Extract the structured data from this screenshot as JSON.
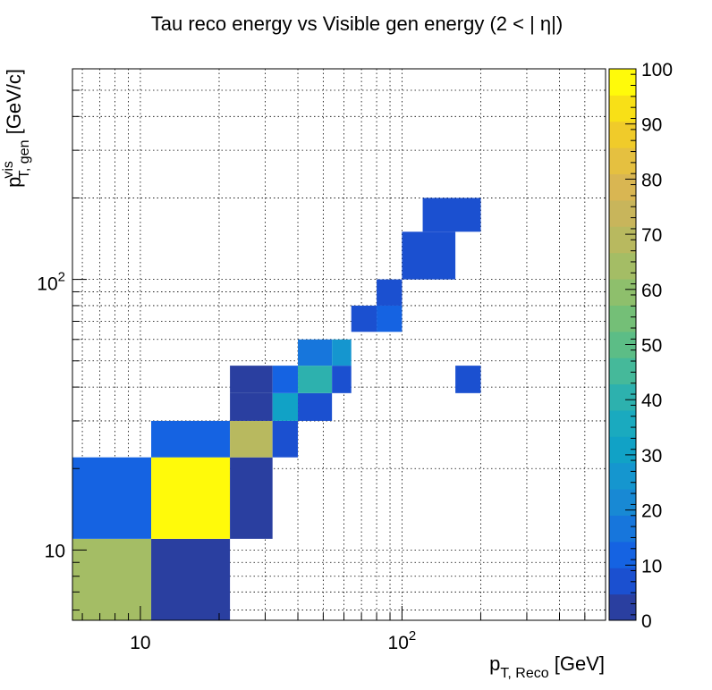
{
  "chart_data": {
    "type": "heatmap",
    "title": "Tau reco energy vs Visible gen energy (2 < |   η|)",
    "xlabel": {
      "main": "p",
      "sub": "T, Reco",
      "unit": " [GeV]"
    },
    "ylabel": {
      "main": "p",
      "sup": "vis",
      "sub": "T, gen",
      "unit": " [GeV/c]"
    },
    "x_scale": "log",
    "y_scale": "log",
    "xlim": [
      5.5,
      600
    ],
    "ylim": [
      5.5,
      600
    ],
    "x_tick_labels": [
      {
        "value": 10,
        "base": "10",
        "exp": ""
      },
      {
        "value": 100,
        "base": "10",
        "exp": "2"
      }
    ],
    "y_tick_labels": [
      {
        "value": 10,
        "base": "10",
        "exp": ""
      },
      {
        "value": 100,
        "base": "10",
        "exp": "2"
      }
    ],
    "grid": true,
    "colorbar": {
      "range": [
        0,
        100
      ],
      "tick_labels": [
        "0",
        "10",
        "20",
        "30",
        "40",
        "50",
        "60",
        "70",
        "80",
        "90",
        "100"
      ],
      "palette": [
        "#2a3fa0",
        "#1b50d0",
        "#1563e2",
        "#1776dc",
        "#1889d4",
        "#1596cf",
        "#11a2c6",
        "#1aaabf",
        "#2db1ae",
        "#45b99a",
        "#5cbd86",
        "#74bf77",
        "#8ebf6c",
        "#a4bd65",
        "#b8b95f",
        "#c8b55b",
        "#d9b652",
        "#e5c040",
        "#f0cb2a",
        "#f8e017",
        "#fffa0a"
      ]
    },
    "cells": [
      {
        "x0": 5.5,
        "x1": 11,
        "y0": 5.5,
        "y1": 11,
        "value": 63
      },
      {
        "x0": 11,
        "x1": 22,
        "y0": 5.5,
        "y1": 11,
        "value": 1
      },
      {
        "x0": 5.5,
        "x1": 11,
        "y0": 11,
        "y1": 22,
        "value": 12
      },
      {
        "x0": 11,
        "x1": 22,
        "y0": 11,
        "y1": 22,
        "value": 100
      },
      {
        "x0": 22,
        "x1": 32,
        "y0": 11,
        "y1": 22,
        "value": 2
      },
      {
        "x0": 11,
        "x1": 22,
        "y0": 22,
        "y1": 30,
        "value": 12
      },
      {
        "x0": 22,
        "x1": 32,
        "y0": 22,
        "y1": 30,
        "value": 70
      },
      {
        "x0": 32,
        "x1": 40,
        "y0": 22,
        "y1": 30,
        "value": 3
      },
      {
        "x0": 22,
        "x1": 32,
        "y0": 30,
        "y1": 38,
        "value": 2
      },
      {
        "x0": 32,
        "x1": 40,
        "y0": 30,
        "y1": 38,
        "value": 30
      },
      {
        "x0": 40,
        "x1": 54,
        "y0": 30,
        "y1": 38,
        "value": 3
      },
      {
        "x0": 22,
        "x1": 32,
        "y0": 38,
        "y1": 48,
        "value": 2
      },
      {
        "x0": 32,
        "x1": 40,
        "y0": 38,
        "y1": 48,
        "value": 12
      },
      {
        "x0": 40,
        "x1": 54,
        "y0": 38,
        "y1": 48,
        "value": 38
      },
      {
        "x0": 54,
        "x1": 64,
        "y0": 38,
        "y1": 48,
        "value": 3
      },
      {
        "x0": 160,
        "x1": 200,
        "y0": 38,
        "y1": 48,
        "value": 3
      },
      {
        "x0": 40,
        "x1": 54,
        "y0": 48,
        "y1": 60,
        "value": 13
      },
      {
        "x0": 54,
        "x1": 64,
        "y0": 48,
        "y1": 60,
        "value": 27
      },
      {
        "x0": 64,
        "x1": 80,
        "y0": 64,
        "y1": 80,
        "value": 3
      },
      {
        "x0": 80,
        "x1": 100,
        "y0": 64,
        "y1": 80,
        "value": 12
      },
      {
        "x0": 80,
        "x1": 100,
        "y0": 80,
        "y1": 100,
        "value": 3
      },
      {
        "x0": 100,
        "x1": 160,
        "y0": 100,
        "y1": 150,
        "value": 3
      },
      {
        "x0": 120,
        "x1": 200,
        "y0": 150,
        "y1": 200,
        "value": 3
      }
    ]
  }
}
